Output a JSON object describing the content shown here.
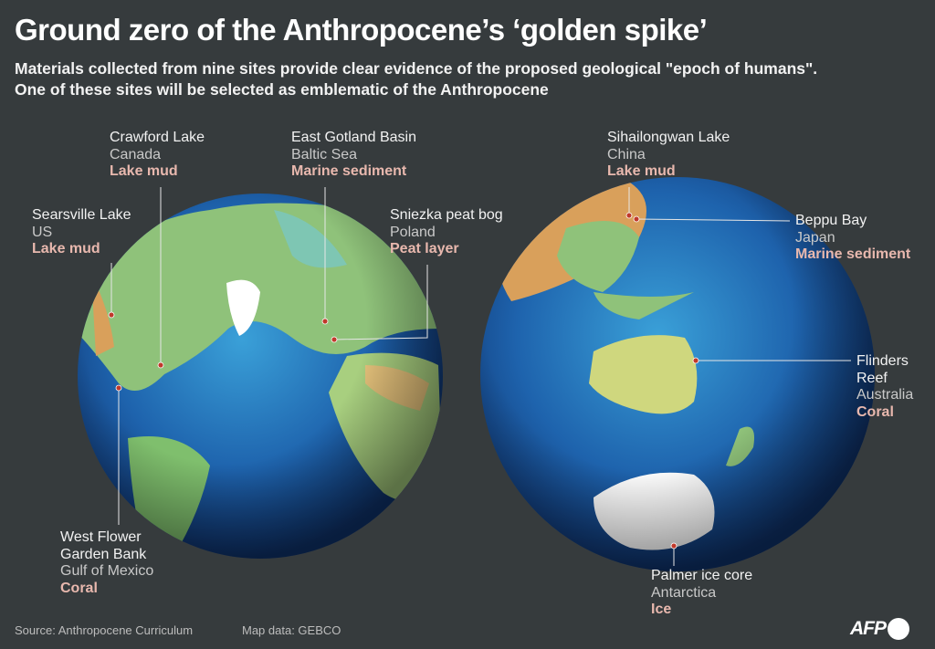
{
  "title": "Ground zero of the Anthropocene’s ‘golden spike’",
  "subtitle_line1": "Materials collected from nine sites provide clear evidence of the proposed geological \"epoch of humans\".",
  "subtitle_line2": "One of these sites will be selected as emblematic of the Anthropocene",
  "colors": {
    "background": "#363b3d",
    "material": "#e8b8ae",
    "site_marker": "#c0392b",
    "ocean": "#1f5fa8",
    "land": "#8fc27a"
  },
  "sites": [
    {
      "name": "Crawford Lake",
      "region": "Canada",
      "material": "Lake mud"
    },
    {
      "name": "East Gotland Basin",
      "region": "Baltic Sea",
      "material": "Marine sediment"
    },
    {
      "name": "Searsville Lake",
      "region": "US",
      "material": "Lake mud"
    },
    {
      "name": "Sniezka peat bog",
      "region": "Poland",
      "material": "Peat layer"
    },
    {
      "name": "West Flower Garden Bank",
      "name_line1": "West Flower",
      "name_line2": "Garden Bank",
      "region": "Gulf of Mexico",
      "material": "Coral"
    },
    {
      "name": "Sihailongwan Lake",
      "region": "China",
      "material": "Lake mud"
    },
    {
      "name": "Beppu Bay",
      "region": "Japan",
      "material": "Marine sediment"
    },
    {
      "name": "Flinders Reef",
      "name_line1": "Flinders",
      "name_line2": "Reef",
      "region": "Australia",
      "material": "Coral"
    },
    {
      "name": "Palmer ice core",
      "region": "Antarctica",
      "material": "Ice"
    }
  ],
  "footer": {
    "source": "Source: Anthropocene Curriculum",
    "map_data": "Map data: GEBCO",
    "logo": "AFP"
  }
}
